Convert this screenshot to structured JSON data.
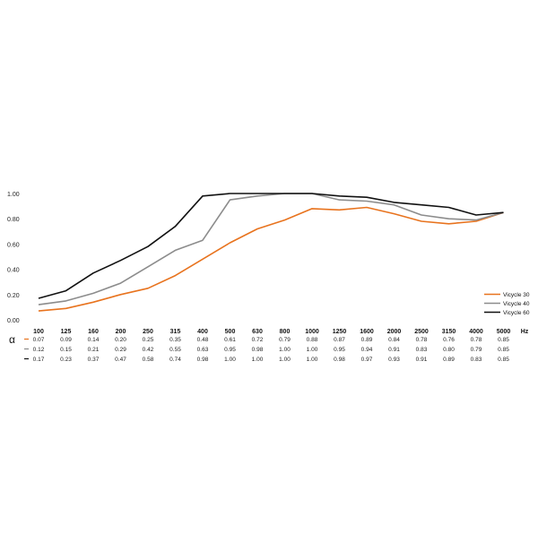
{
  "chart_data": {
    "type": "line",
    "categories": [
      "100",
      "125",
      "160",
      "200",
      "250",
      "315",
      "400",
      "500",
      "630",
      "800",
      "1000",
      "1250",
      "1600",
      "2000",
      "2500",
      "3150",
      "4000",
      "5000"
    ],
    "x_unit": "Hz",
    "alpha_symbol": "α",
    "ylim": [
      0,
      1
    ],
    "yticks": [
      "0.00",
      "0.20",
      "0.40",
      "0.60",
      "0.80",
      "1.00"
    ],
    "grid": false,
    "legend_position": "right",
    "series": [
      {
        "name": "Vicycle 30",
        "color": "#e8731e",
        "values": [
          0.07,
          0.09,
          0.14,
          0.2,
          0.25,
          0.35,
          0.48,
          0.61,
          0.72,
          0.79,
          0.88,
          0.87,
          0.89,
          0.84,
          0.78,
          0.76,
          0.78,
          0.85
        ],
        "labels": [
          "0.07",
          "0.09",
          "0.14",
          "0.20",
          "0.25",
          "0.35",
          "0.48",
          "0.61",
          "0.72",
          "0.79",
          "0.88",
          "0.87",
          "0.89",
          "0.84",
          "0.78",
          "0.76",
          "0.78",
          "0.85"
        ]
      },
      {
        "name": "Vicycle 40",
        "color": "#8c8c8c",
        "values": [
          0.12,
          0.15,
          0.21,
          0.29,
          0.42,
          0.55,
          0.63,
          0.95,
          0.98,
          1.0,
          1.0,
          0.95,
          0.94,
          0.91,
          0.83,
          0.8,
          0.79,
          0.85
        ],
        "labels": [
          "0.12",
          "0.15",
          "0.21",
          "0.29",
          "0.42",
          "0.55",
          "0.63",
          "0.95",
          "0.98",
          "1.00",
          "1.00",
          "0.95",
          "0.94",
          "0.91",
          "0.83",
          "0.80",
          "0.79",
          "0.85"
        ]
      },
      {
        "name": "Vicycle 60",
        "color": "#111111",
        "values": [
          0.17,
          0.23,
          0.37,
          0.47,
          0.58,
          0.74,
          0.98,
          1.0,
          1.0,
          1.0,
          1.0,
          0.98,
          0.97,
          0.93,
          0.91,
          0.89,
          0.83,
          0.85
        ],
        "labels": [
          "0.17",
          "0.23",
          "0.37",
          "0.47",
          "0.58",
          "0.74",
          "0.98",
          "1.00",
          "1.00",
          "1.00",
          "1.00",
          "0.98",
          "0.97",
          "0.93",
          "0.91",
          "0.89",
          "0.83",
          "0.85"
        ]
      }
    ]
  }
}
